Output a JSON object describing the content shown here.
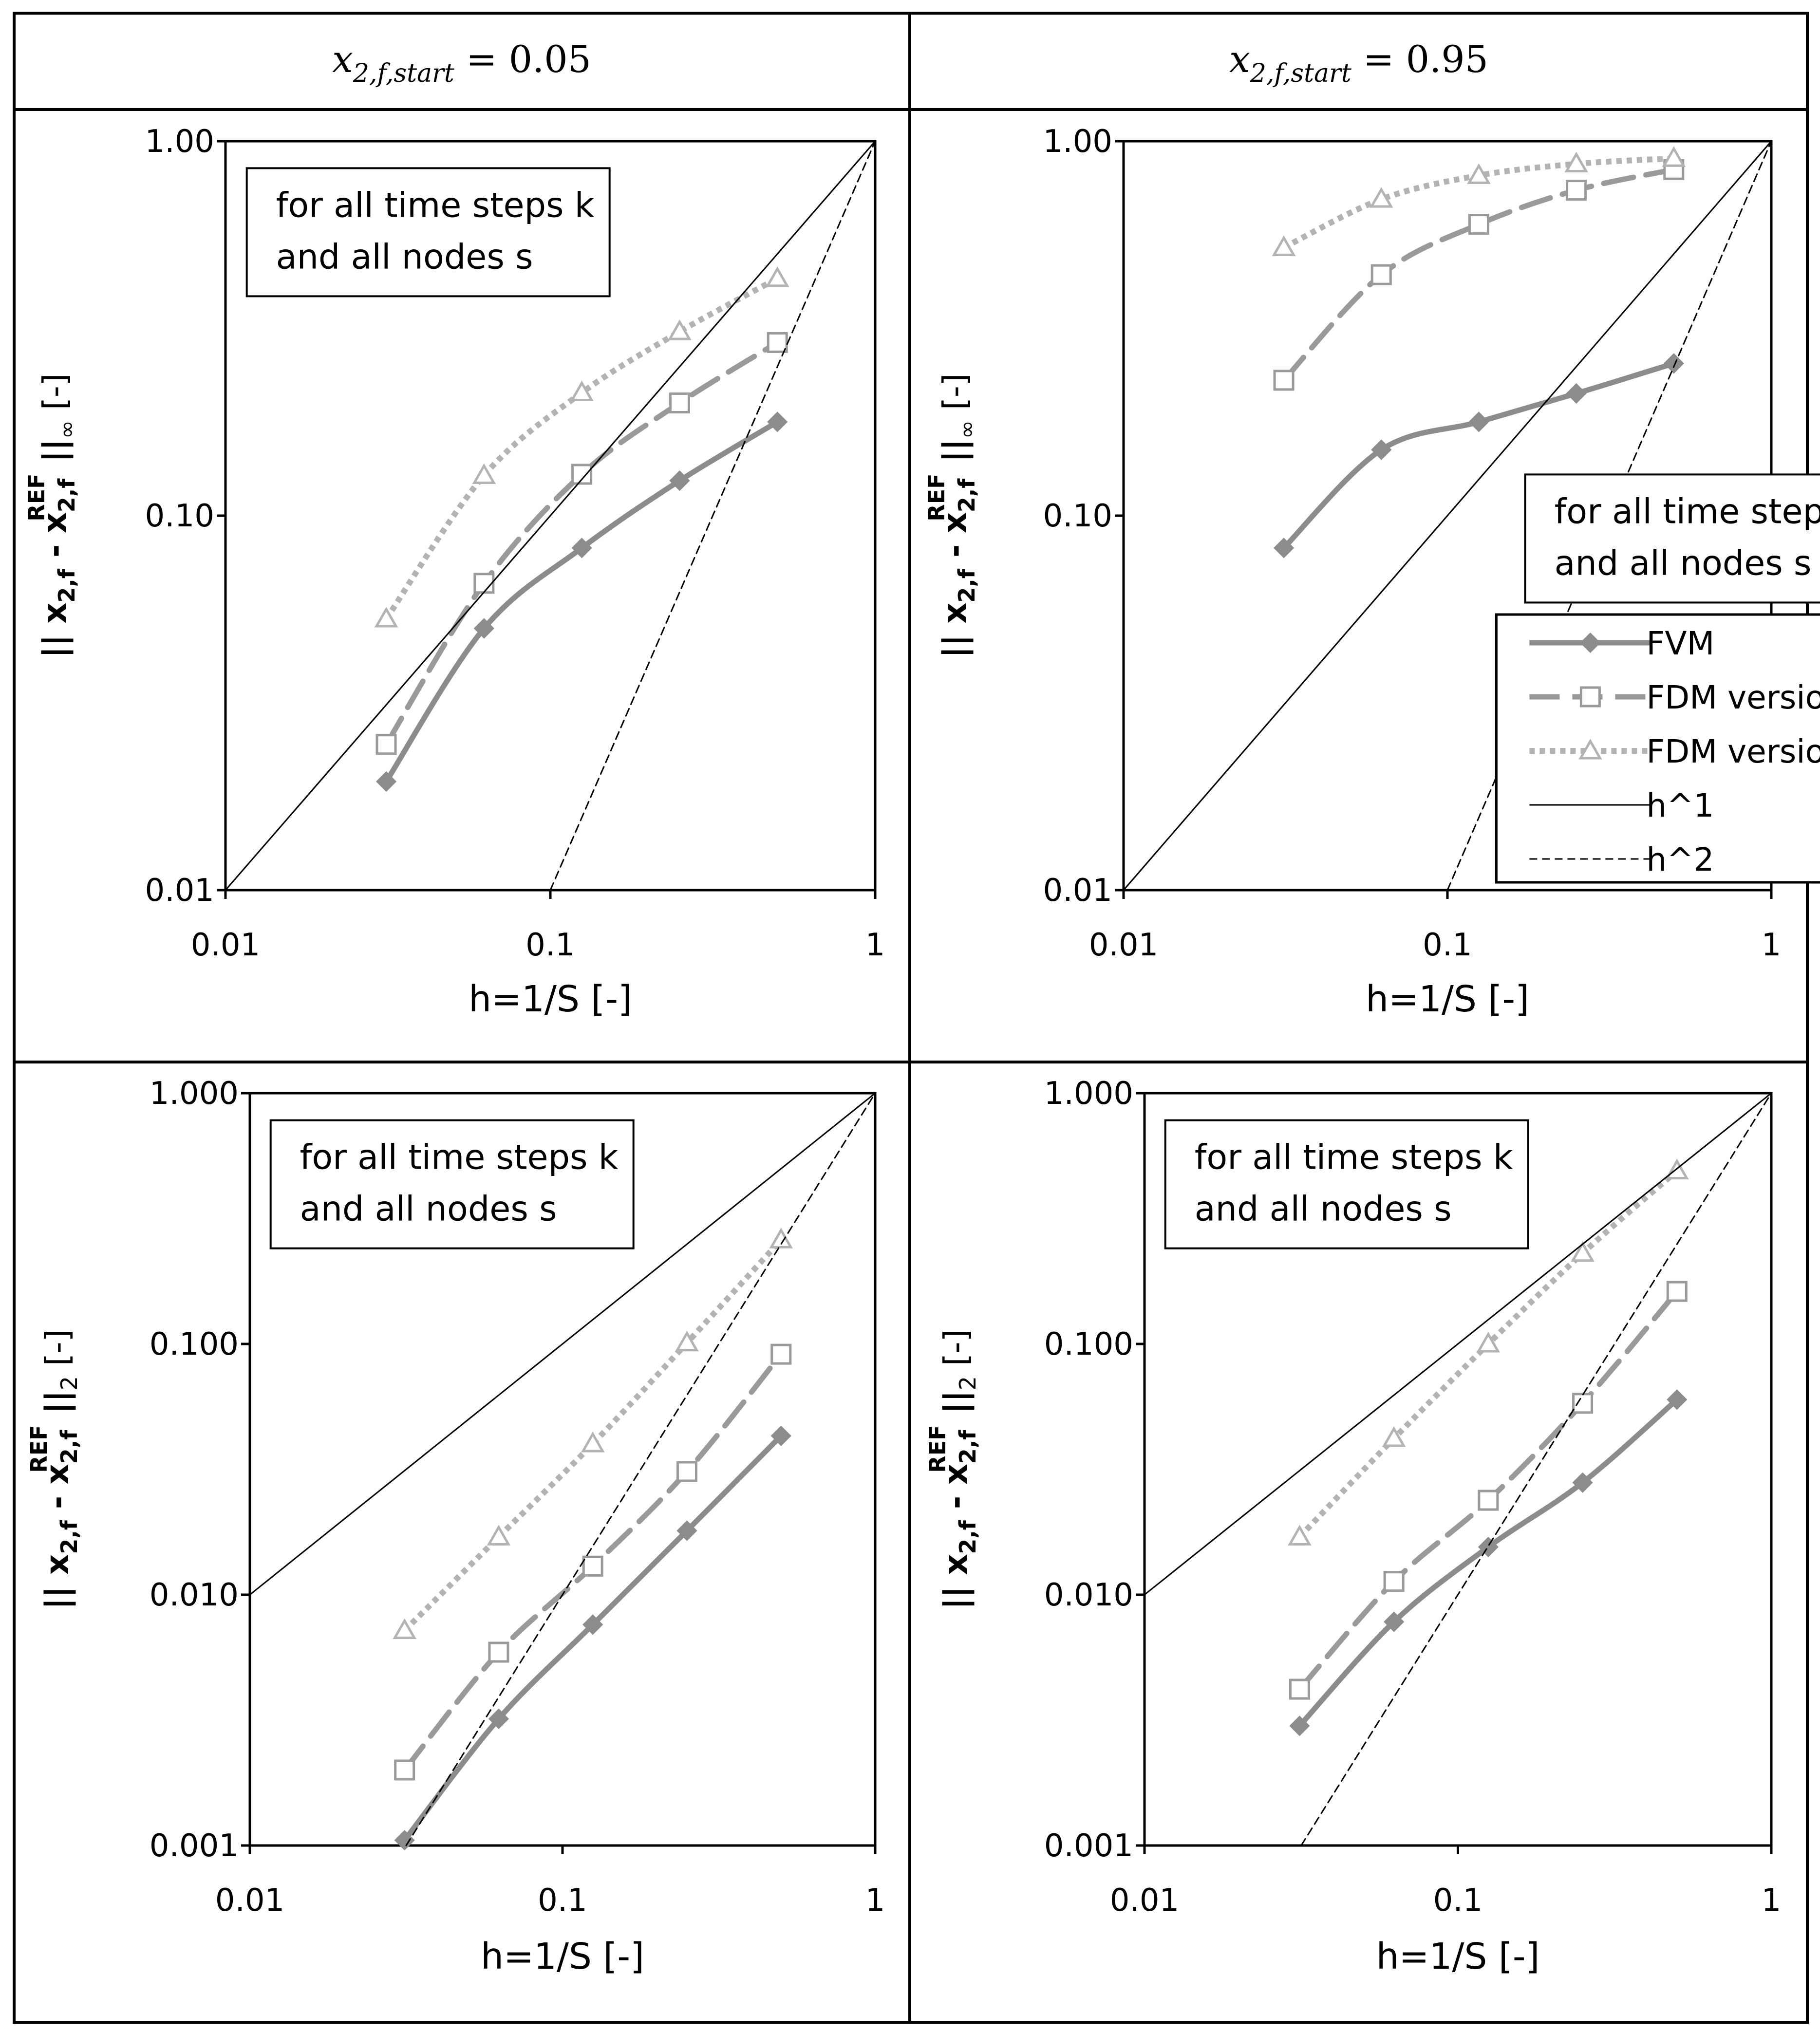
{
  "header": {
    "left": {
      "var": "x",
      "sub": "2,f,start",
      "rel": " = 0.05"
    },
    "right": {
      "var": "x",
      "sub": "2,f,start",
      "rel": " = 0.95"
    }
  },
  "colors": {
    "fvm": "#8c8c8c",
    "fdm_a": "#9a9a9a",
    "fdm_b": "#b3b3b3",
    "h1": "#000000",
    "h2": "#000000",
    "frame": "#000000"
  },
  "chart_data": [
    {
      "type": "line",
      "panel": "top-left",
      "xlabel": "h=1/S [-]",
      "ylabel": {
        "main": "|| x",
        "sub1": "2,f",
        "mid": " - x",
        "sub2": "2,f",
        "sup2": "REF",
        "tail": " ||",
        "norm": "∞",
        "unit": " [-]"
      },
      "x_scale": "log",
      "y_scale": "log",
      "xlim": [
        0.01,
        1
      ],
      "ylim": [
        0.01,
        1
      ],
      "x_ticks": [
        "0.01",
        "0.1",
        "1"
      ],
      "y_ticks": [
        "0.01",
        "0.10",
        "1.00"
      ],
      "x_tick_values": [
        0.01,
        0.1,
        1
      ],
      "y_tick_values": [
        0.01,
        0.1,
        1
      ],
      "annotation": [
        "for all time steps k",
        "and all nodes s"
      ],
      "annotation_position": "top-left",
      "legend": null,
      "series": [
        {
          "name": "FVM",
          "x": [
            0.03125,
            0.0625,
            0.125,
            0.25,
            0.5
          ],
          "y": [
            0.0195,
            0.05,
            0.082,
            0.124,
            0.178
          ]
        },
        {
          "name": "FDM version A",
          "x": [
            0.03125,
            0.0625,
            0.125,
            0.25,
            0.5
          ],
          "y": [
            0.0245,
            0.066,
            0.129,
            0.2,
            0.29
          ]
        },
        {
          "name": "FDM version B",
          "x": [
            0.03125,
            0.0625,
            0.125,
            0.25,
            0.5
          ],
          "y": [
            0.053,
            0.128,
            0.213,
            0.31,
            0.43
          ]
        },
        {
          "name": "h^1",
          "x": [
            0.01,
            1
          ],
          "y": [
            0.01,
            1
          ]
        },
        {
          "name": "h^2",
          "x": [
            0.1,
            1
          ],
          "y": [
            0.01,
            1
          ]
        }
      ]
    },
    {
      "type": "line",
      "panel": "top-right",
      "xlabel": "h=1/S [-]",
      "ylabel": {
        "main": "|| x",
        "sub1": "2,f",
        "mid": " - x",
        "sub2": "2,f",
        "sup2": "REF",
        "tail": " ||",
        "norm": "∞",
        "unit": " [-]"
      },
      "x_scale": "log",
      "y_scale": "log",
      "xlim": [
        0.01,
        1
      ],
      "ylim": [
        0.01,
        1
      ],
      "x_ticks": [
        "0.01",
        "0.1",
        "1"
      ],
      "y_ticks": [
        "0.01",
        "0.10",
        "1.00"
      ],
      "x_tick_values": [
        0.01,
        0.1,
        1
      ],
      "y_tick_values": [
        0.01,
        0.1,
        1
      ],
      "annotation": [
        "for all time steps k",
        "and all nodes s"
      ],
      "annotation_position": "center-right",
      "legend": [
        "FVM",
        "FDM version A",
        "FDM version B",
        "h^1",
        "h^2"
      ],
      "legend_position": "bottom-right",
      "series": [
        {
          "name": "FVM",
          "x": [
            0.03125,
            0.0625,
            0.125,
            0.25,
            0.5
          ],
          "y": [
            0.082,
            0.15,
            0.178,
            0.212,
            0.255
          ]
        },
        {
          "name": "FDM version A",
          "x": [
            0.03125,
            0.0625,
            0.125,
            0.25,
            0.5
          ],
          "y": [
            0.23,
            0.44,
            0.6,
            0.74,
            0.84
          ]
        },
        {
          "name": "FDM version B",
          "x": [
            0.03125,
            0.0625,
            0.125,
            0.25,
            0.5
          ],
          "y": [
            0.52,
            0.7,
            0.81,
            0.87,
            0.9
          ]
        },
        {
          "name": "h^1",
          "x": [
            0.01,
            1
          ],
          "y": [
            0.01,
            1
          ]
        },
        {
          "name": "h^2",
          "x": [
            0.1,
            1
          ],
          "y": [
            0.01,
            1
          ]
        }
      ]
    },
    {
      "type": "line",
      "panel": "bottom-left",
      "xlabel": "h=1/S [-]",
      "ylabel": {
        "main": "|| x",
        "sub1": "2,f",
        "mid": " - x",
        "sub2": "2,f",
        "sup2": "REF",
        "tail": " ||",
        "norm": "2",
        "unit": " [-]"
      },
      "x_scale": "log",
      "y_scale": "log",
      "xlim": [
        0.01,
        1
      ],
      "ylim": [
        0.001,
        1
      ],
      "x_ticks": [
        "0.01",
        "0.1",
        "1"
      ],
      "y_ticks": [
        "0.001",
        "0.010",
        "0.100",
        "1.000"
      ],
      "x_tick_values": [
        0.01,
        0.1,
        1
      ],
      "y_tick_values": [
        0.001,
        0.01,
        0.1,
        1
      ],
      "annotation": [
        "for all time steps k",
        "and all nodes s"
      ],
      "annotation_position": "top-left",
      "legend": null,
      "series": [
        {
          "name": "FVM",
          "x": [
            0.03125,
            0.0625,
            0.125,
            0.25,
            0.5
          ],
          "y": [
            0.00105,
            0.0032,
            0.0076,
            0.018,
            0.043
          ]
        },
        {
          "name": "FDM version A",
          "x": [
            0.03125,
            0.0625,
            0.125,
            0.25,
            0.5
          ],
          "y": [
            0.002,
            0.0059,
            0.013,
            0.031,
            0.091
          ]
        },
        {
          "name": "FDM version B",
          "x": [
            0.03125,
            0.0625,
            0.125,
            0.25,
            0.5
          ],
          "y": [
            0.0072,
            0.017,
            0.04,
            0.101,
            0.26
          ]
        },
        {
          "name": "h^1",
          "x": [
            0.01,
            1
          ],
          "y": [
            0.01,
            1
          ]
        },
        {
          "name": "h^2",
          "x": [
            0.03162,
            1
          ],
          "y": [
            0.001,
            1
          ]
        }
      ]
    },
    {
      "type": "line",
      "panel": "bottom-right",
      "xlabel": "h=1/S [-]",
      "ylabel": {
        "main": "|| x",
        "sub1": "2,f",
        "mid": " - x",
        "sub2": "2,f",
        "sup2": "REF",
        "tail": " ||",
        "norm": "2",
        "unit": " [-]"
      },
      "x_scale": "log",
      "y_scale": "log",
      "xlim": [
        0.01,
        1
      ],
      "ylim": [
        0.001,
        1
      ],
      "x_ticks": [
        "0.01",
        "0.1",
        "1"
      ],
      "y_ticks": [
        "0.001",
        "0.010",
        "0.100",
        "1.000"
      ],
      "x_tick_values": [
        0.01,
        0.1,
        1
      ],
      "y_tick_values": [
        0.001,
        0.01,
        0.1,
        1
      ],
      "annotation": [
        "for all time steps k",
        "and all nodes s"
      ],
      "annotation_position": "top-left",
      "legend": null,
      "series": [
        {
          "name": "FVM",
          "x": [
            0.03125,
            0.0625,
            0.125,
            0.25,
            0.5
          ],
          "y": [
            0.003,
            0.0078,
            0.0155,
            0.028,
            0.06
          ]
        },
        {
          "name": "FDM version A",
          "x": [
            0.03125,
            0.0625,
            0.125,
            0.25,
            0.5
          ],
          "y": [
            0.0042,
            0.0113,
            0.0238,
            0.058,
            0.162
          ]
        },
        {
          "name": "FDM version B",
          "x": [
            0.03125,
            0.0625,
            0.125,
            0.25,
            0.5
          ],
          "y": [
            0.017,
            0.042,
            0.1,
            0.23,
            0.49
          ]
        },
        {
          "name": "h^1",
          "x": [
            0.01,
            1
          ],
          "y": [
            0.01,
            1
          ]
        },
        {
          "name": "h^2",
          "x": [
            0.03162,
            1
          ],
          "y": [
            0.001,
            1
          ]
        }
      ]
    }
  ]
}
